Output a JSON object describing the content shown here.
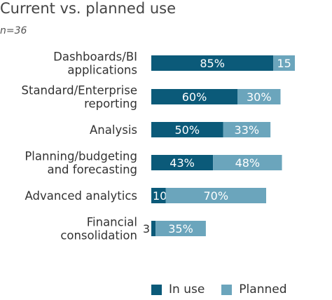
{
  "title": "Current vs. planned use",
  "subtitle": "n=36",
  "colors": {
    "in_use": "#0b5a79",
    "planned": "#6ba5bc"
  },
  "chart_data": {
    "type": "bar",
    "orientation": "horizontal",
    "stacked": true,
    "title": "Current vs. planned use",
    "categories": [
      [
        "Dashboards/BI",
        "applications"
      ],
      [
        "Standard/Enterprise",
        "reporting"
      ],
      [
        "Analysis"
      ],
      [
        "Planning/budgeting",
        "and forecasting"
      ],
      [
        "Advanced analytics"
      ],
      [
        "Financial",
        "consolidation"
      ]
    ],
    "series": [
      {
        "name": "In use",
        "values": [
          85,
          60,
          50,
          43,
          10,
          3
        ],
        "labels": [
          "85%",
          "60%",
          "50%",
          "43%",
          "10",
          "3"
        ]
      },
      {
        "name": "Planned",
        "values": [
          15,
          30,
          33,
          48,
          70,
          35
        ],
        "labels": [
          "15",
          "30%",
          "33%",
          "48%",
          "70%",
          "35%"
        ]
      }
    ],
    "xlim": [
      0,
      100
    ],
    "grid": false,
    "legend_position": "bottom"
  },
  "legend": {
    "in_use": "In use",
    "planned": "Planned"
  }
}
